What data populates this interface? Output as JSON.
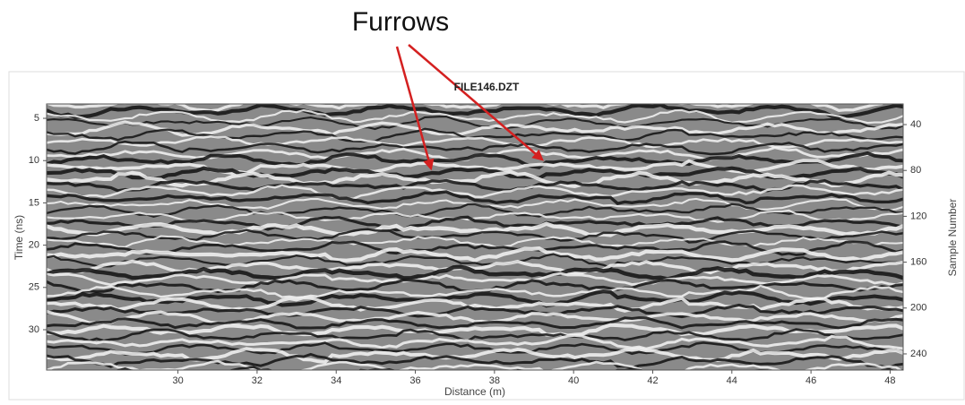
{
  "chart_data": {
    "type": "image",
    "annotation": "Furrows",
    "title": "FILE146.DZT",
    "x_label": "Distance (m)",
    "y_label": "Time (ns)",
    "y2_label": "Sample Number",
    "xlim": [
      26.68,
      48.33
    ],
    "xticks": [
      30,
      32,
      34,
      36,
      38,
      40,
      42,
      44,
      46,
      48
    ],
    "ylim": [
      3.3,
      34.77
    ],
    "yticks": [
      5,
      10,
      15,
      20,
      25,
      30
    ],
    "y2lim": [
      22,
      254.1
    ],
    "y2ticks": [
      40,
      80,
      120,
      160,
      200,
      240
    ],
    "annotation_color": "#d42020"
  }
}
